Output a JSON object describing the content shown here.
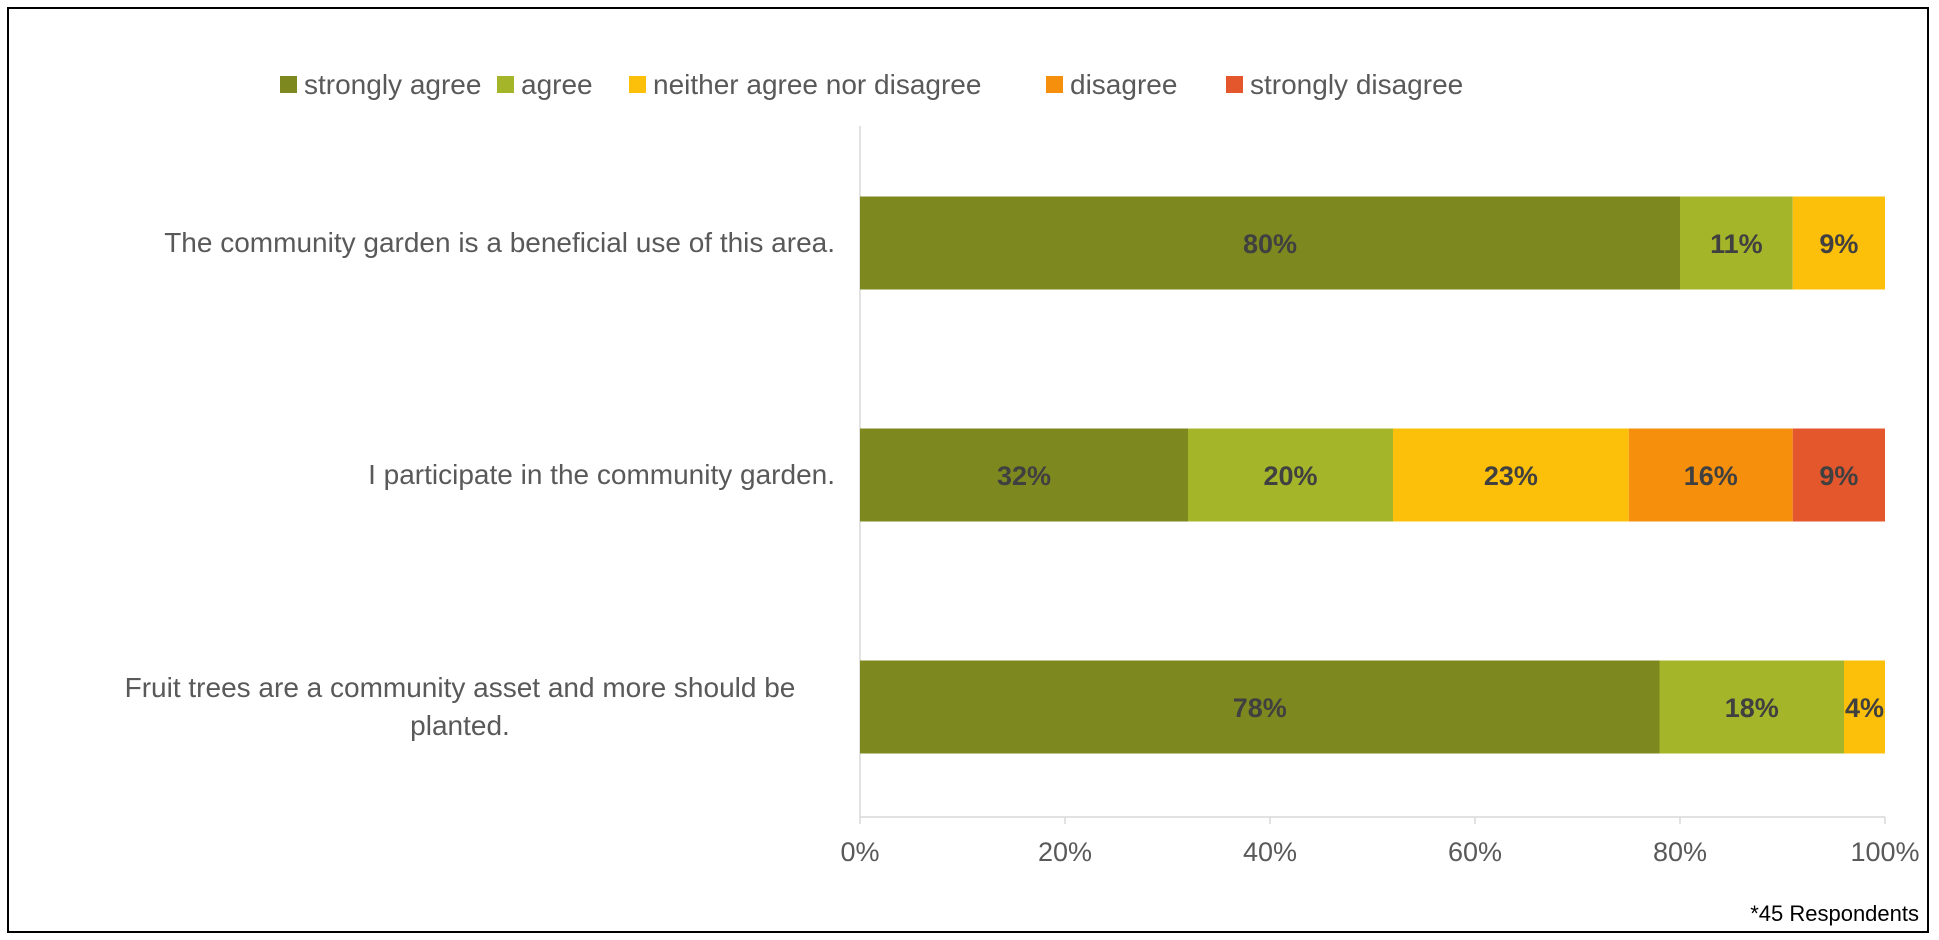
{
  "chart_data": {
    "type": "bar",
    "orientation": "horizontal",
    "stacked": true,
    "categories": [
      "The community garden is a beneficial use of this area.",
      "I participate in the community garden.",
      "Fruit trees are a community asset and more should be planted."
    ],
    "series": [
      {
        "name": "strongly agree",
        "color": "#7d891f",
        "values": [
          80,
          32,
          78
        ]
      },
      {
        "name": "agree",
        "color": "#a4b52a",
        "values": [
          11,
          20,
          18
        ]
      },
      {
        "name": "neither agree nor disagree",
        "color": "#fdc00a",
        "values": [
          9,
          23,
          4
        ]
      },
      {
        "name": "disagree",
        "color": "#f6900c",
        "values": [
          0,
          16,
          0
        ]
      },
      {
        "name": "strongly disagree",
        "color": "#e4572c",
        "values": [
          0,
          9,
          0
        ]
      }
    ],
    "data_label_suffix": "%",
    "xlim": [
      0,
      100
    ],
    "xticks": [
      "0%",
      "20%",
      "40%",
      "60%",
      "80%",
      "100%"
    ],
    "legend_position": "top",
    "grid": false,
    "footnote": "*45 Respondents"
  }
}
